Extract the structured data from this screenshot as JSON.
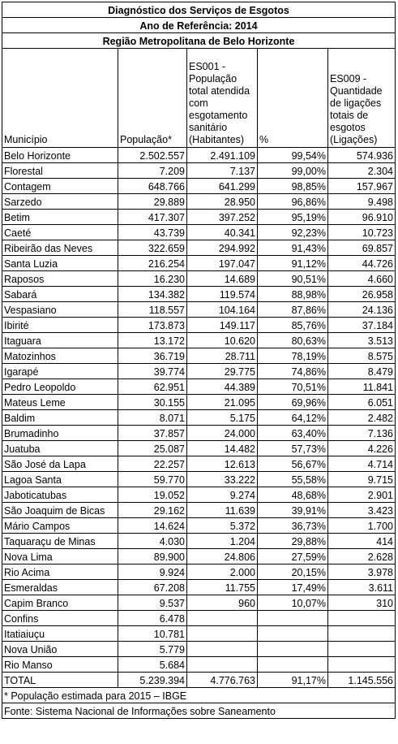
{
  "title": "Diagnóstico dos Serviços de Esgotos",
  "subtitle": "Ano de Referência: 2014",
  "region": "Região Metropolitana de Belo Horizonte",
  "columns": {
    "municipio": "Município",
    "populacao": "População*",
    "es001": "ES001 - População total atendida com esgotamento sanitário (Habitantes)",
    "pct": "%",
    "es009": "ES009 - Quantidade de ligações totais de esgotos (Ligações)"
  },
  "rows": [
    {
      "municipio": "Belo Horizonte",
      "populacao": "2.502.557",
      "es001": "2.491.109",
      "pct": "99,54%",
      "es009": "574.936"
    },
    {
      "municipio": "Florestal",
      "populacao": "7.209",
      "es001": "7.137",
      "pct": "99,00%",
      "es009": "2.304"
    },
    {
      "municipio": "Contagem",
      "populacao": "648.766",
      "es001": "641.299",
      "pct": "98,85%",
      "es009": "157.967"
    },
    {
      "municipio": "Sarzedo",
      "populacao": "29.889",
      "es001": "28.950",
      "pct": "96,86%",
      "es009": "9.498"
    },
    {
      "municipio": "Betim",
      "populacao": "417.307",
      "es001": "397.252",
      "pct": "95,19%",
      "es009": "96.910"
    },
    {
      "municipio": "Caeté",
      "populacao": "43.739",
      "es001": "40.341",
      "pct": "92,23%",
      "es009": "10.723"
    },
    {
      "municipio": "Ribeirão das Neves",
      "populacao": "322.659",
      "es001": "294.992",
      "pct": "91,43%",
      "es009": "69.857"
    },
    {
      "municipio": "Santa Luzia",
      "populacao": "216.254",
      "es001": "197.047",
      "pct": "91,12%",
      "es009": "44.726"
    },
    {
      "municipio": "Raposos",
      "populacao": "16.230",
      "es001": "14.689",
      "pct": "90,51%",
      "es009": "4.660"
    },
    {
      "municipio": "Sabará",
      "populacao": "134.382",
      "es001": "119.574",
      "pct": "88,98%",
      "es009": "26.958"
    },
    {
      "municipio": "Vespasiano",
      "populacao": "118.557",
      "es001": "104.164",
      "pct": "87,86%",
      "es009": "24.136"
    },
    {
      "municipio": "Ibirité",
      "populacao": "173.873",
      "es001": "149.117",
      "pct": "85,76%",
      "es009": "37.184"
    },
    {
      "municipio": "Itaguara",
      "populacao": "13.172",
      "es001": "10.620",
      "pct": "80,63%",
      "es009": "3.513"
    },
    {
      "municipio": "Matozinhos",
      "populacao": "36.719",
      "es001": "28.711",
      "pct": "78,19%",
      "es009": "8.575"
    },
    {
      "municipio": "Igarapé",
      "populacao": "39.774",
      "es001": "29.775",
      "pct": "74,86%",
      "es009": "8.479"
    },
    {
      "municipio": "Pedro Leopoldo",
      "populacao": "62.951",
      "es001": "44.389",
      "pct": "70,51%",
      "es009": "11.841"
    },
    {
      "municipio": "Mateus Leme",
      "populacao": "30.155",
      "es001": "21.095",
      "pct": "69,96%",
      "es009": "6.051"
    },
    {
      "municipio": "Baldim",
      "populacao": "8.071",
      "es001": "5.175",
      "pct": "64,12%",
      "es009": "2.482"
    },
    {
      "municipio": "Brumadinho",
      "populacao": "37.857",
      "es001": "24.000",
      "pct": "63,40%",
      "es009": "7.136"
    },
    {
      "municipio": "Juatuba",
      "populacao": "25.087",
      "es001": "14.482",
      "pct": "57,73%",
      "es009": "4.226"
    },
    {
      "municipio": "São José da Lapa",
      "populacao": "22.257",
      "es001": "12.613",
      "pct": "56,67%",
      "es009": "4.714"
    },
    {
      "municipio": "Lagoa Santa",
      "populacao": "59.770",
      "es001": "33.222",
      "pct": "55,58%",
      "es009": "9.715"
    },
    {
      "municipio": "Jaboticatubas",
      "populacao": "19.052",
      "es001": "9.274",
      "pct": "48,68%",
      "es009": "2.901"
    },
    {
      "municipio": "São Joaquim de Bicas",
      "populacao": "29.162",
      "es001": "11.639",
      "pct": "39,91%",
      "es009": "3.423"
    },
    {
      "municipio": "Mário Campos",
      "populacao": "14.624",
      "es001": "5.372",
      "pct": "36,73%",
      "es009": "1.700"
    },
    {
      "municipio": "Taquaraçu de Minas",
      "populacao": "4.030",
      "es001": "1.204",
      "pct": "29,88%",
      "es009": "414"
    },
    {
      "municipio": "Nova Lima",
      "populacao": "89.900",
      "es001": "24.806",
      "pct": "27,59%",
      "es009": "2.628"
    },
    {
      "municipio": "Rio Acima",
      "populacao": "9.924",
      "es001": "2.000",
      "pct": "20,15%",
      "es009": "3.978"
    },
    {
      "municipio": "Esmeraldas",
      "populacao": "67.208",
      "es001": "11.755",
      "pct": "17,49%",
      "es009": "3.611"
    },
    {
      "municipio": "Capim Branco",
      "populacao": "9.537",
      "es001": "960",
      "pct": "10,07%",
      "es009": "310"
    },
    {
      "municipio": "Confins",
      "populacao": "6.478",
      "es001": "",
      "pct": "",
      "es009": ""
    },
    {
      "municipio": "Itatiaiuçu",
      "populacao": "10.781",
      "es001": "",
      "pct": "",
      "es009": ""
    },
    {
      "municipio": "Nova União",
      "populacao": "5.779",
      "es001": "",
      "pct": "",
      "es009": ""
    },
    {
      "municipio": "Rio Manso",
      "populacao": "5.684",
      "es001": "",
      "pct": "",
      "es009": ""
    }
  ],
  "total": {
    "municipio": "TOTAL",
    "populacao": "5.239.394",
    "es001": "4.776.763",
    "pct": "91,17%",
    "es009": "1.145.556"
  },
  "footnote": "* População estimada para 2015 – IBGE",
  "source": "Fonte: Sistema Nacional de Informações sobre Saneamento"
}
